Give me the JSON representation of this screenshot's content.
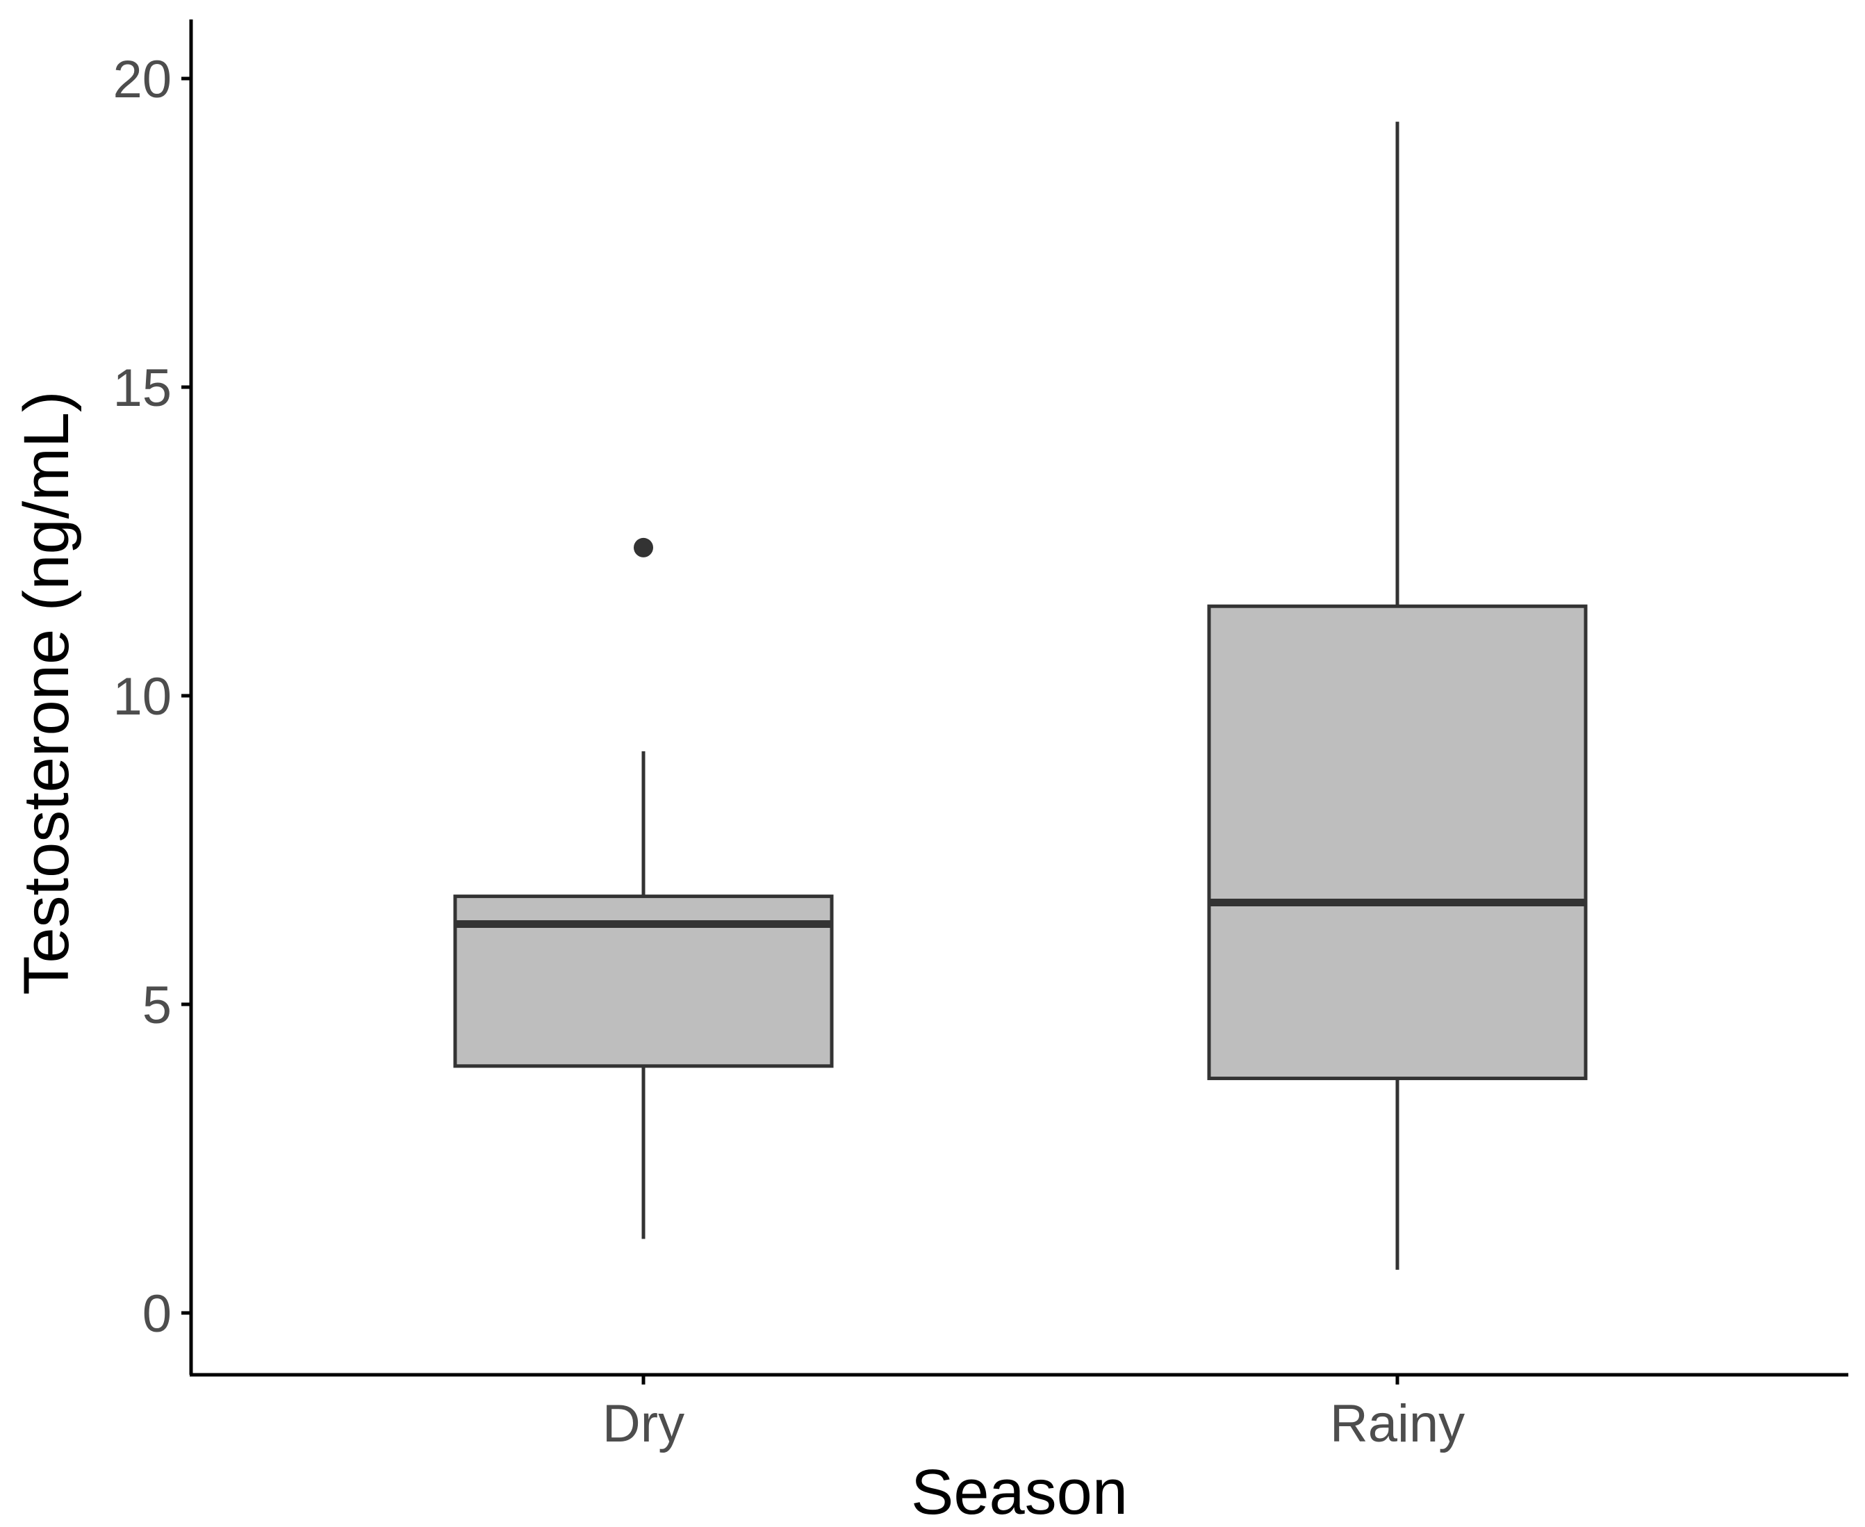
{
  "chart_data": {
    "type": "boxplot",
    "title": "",
    "xlabel": "Season",
    "ylabel": "Testosterone (ng/mL)",
    "ylim": [
      -1,
      21
    ],
    "yticks": [
      0,
      5,
      10,
      15,
      20
    ],
    "grid": false,
    "legend": "none",
    "categories": [
      "Dry",
      "Rainy"
    ],
    "boxes": [
      {
        "category": "Dry",
        "whisker_low": 1.2,
        "q1": 4.0,
        "median": 6.3,
        "q3": 6.75,
        "whisker_high": 9.1,
        "outliers": [
          12.4
        ]
      },
      {
        "category": "Rainy",
        "whisker_low": 0.7,
        "q1": 3.8,
        "median": 6.65,
        "q3": 11.45,
        "whisker_high": 19.3,
        "outliers": []
      }
    ],
    "colors": {
      "box_fill": "#bebebe",
      "box_stroke": "#333333",
      "axis": "#000000",
      "tick_text": "#4d4d4d"
    }
  }
}
